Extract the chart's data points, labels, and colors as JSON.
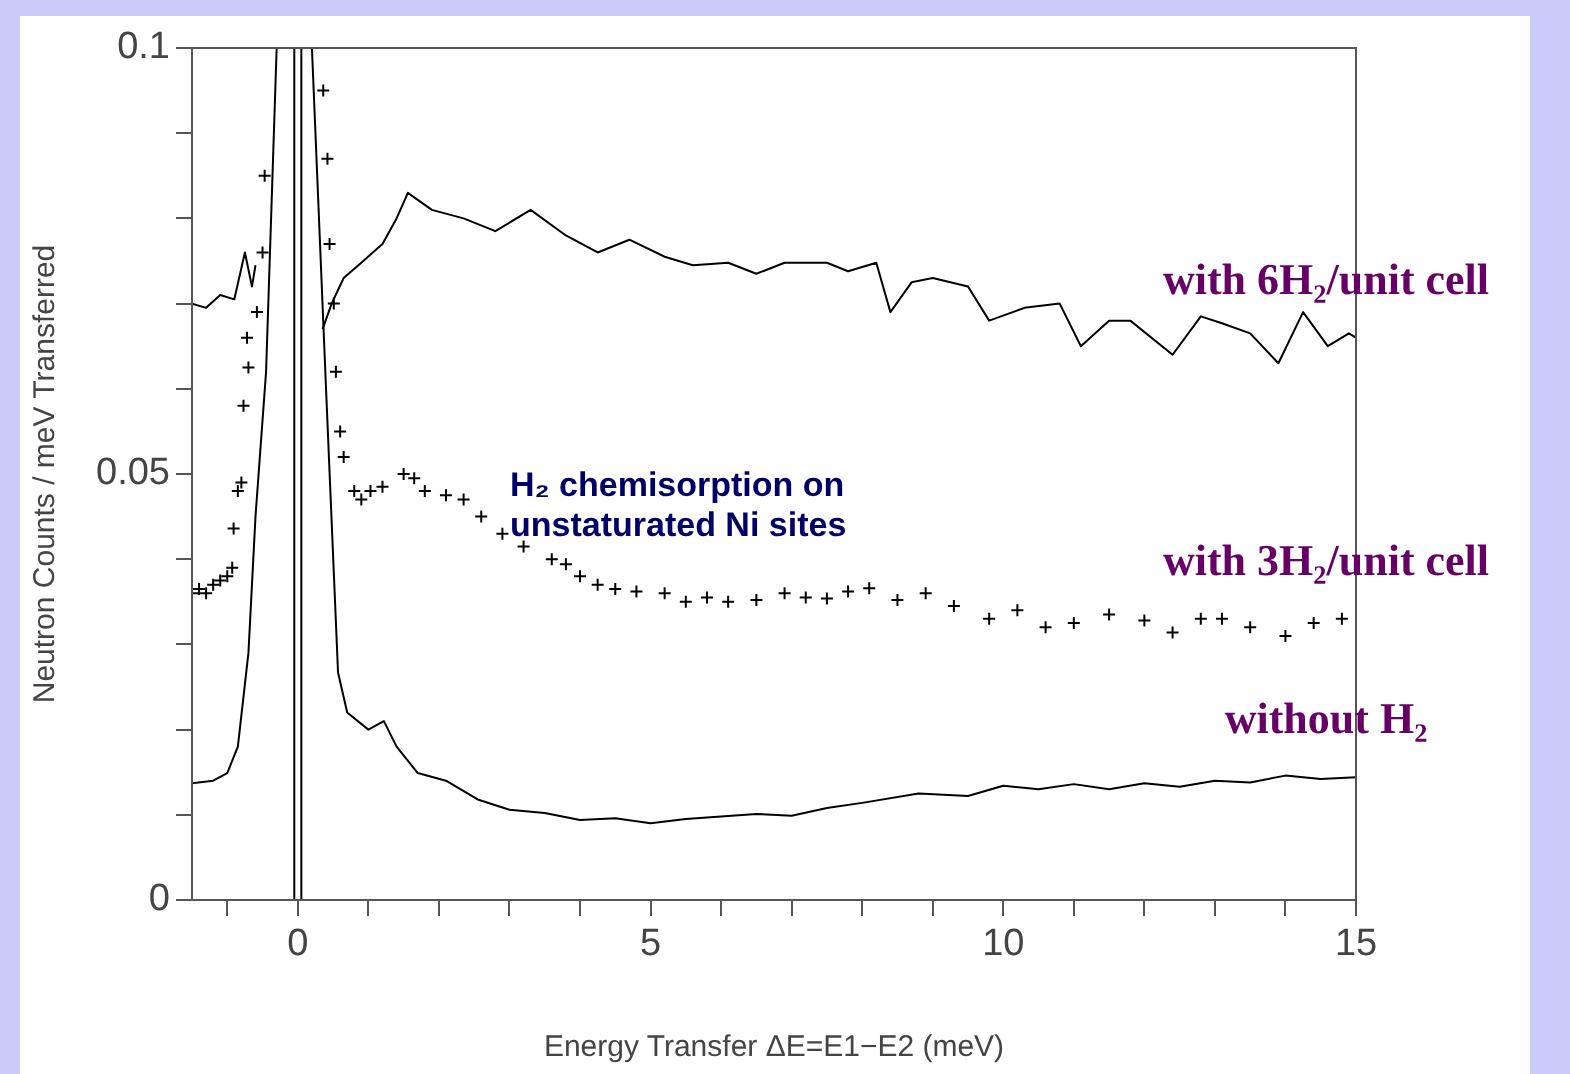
{
  "chart_data": {
    "type": "line",
    "xlabel": "Energy Transfer ΔE=E1−E2 (meV)",
    "ylabel": "Neutron Counts / meV Transferred",
    "xlim": [
      -1.5,
      15
    ],
    "ylim": [
      0,
      0.1
    ],
    "xticks": [
      {
        "value": -1,
        "label": null
      },
      0,
      {
        "value": 1,
        "label": null
      },
      {
        "value": 2,
        "label": null
      },
      {
        "value": 3,
        "label": null
      },
      {
        "value": 4,
        "label": null
      },
      5,
      {
        "value": 6,
        "label": null
      },
      {
        "value": 7,
        "label": null
      },
      {
        "value": 8,
        "label": null
      },
      {
        "value": 9,
        "label": null
      },
      10,
      {
        "value": 11,
        "label": null
      },
      {
        "value": 12,
        "label": null
      },
      {
        "value": 13,
        "label": null
      },
      {
        "value": 14,
        "label": null
      },
      15
    ],
    "yticks": [
      0,
      {
        "value": 0.01,
        "label": null
      },
      {
        "value": 0.02,
        "label": null
      },
      {
        "value": 0.03,
        "label": null
      },
      {
        "value": 0.04,
        "label": null
      },
      0.05,
      {
        "value": 0.06,
        "label": null
      },
      {
        "value": 0.07,
        "label": null
      },
      {
        "value": 0.08,
        "label": null
      },
      {
        "value": 0.09,
        "label": null
      },
      0.1
    ],
    "grid": false,
    "legend": false,
    "annotations": [
      "H₂ chemisorption on unstaturated Ni sites"
    ],
    "series": [
      {
        "name": "with 6H₂/unit cell",
        "type": "line",
        "marker": "none",
        "color": "#000000",
        "x": [
          -1.5,
          -1.3,
          -1.1,
          -0.9,
          -0.75,
          -0.65,
          -0.6,
          0,
          0.35,
          0.48,
          0.65,
          0.9,
          1.2,
          1.4,
          1.56,
          1.9,
          2.35,
          2.8,
          3.3,
          3.8,
          4.25,
          4.7,
          5.2,
          5.6,
          6.1,
          6.5,
          6.9,
          7.5,
          7.8,
          8.2,
          8.4,
          8.7,
          9.0,
          9.5,
          9.8,
          10.3,
          10.8,
          11.1,
          11.5,
          11.8,
          12.4,
          12.8,
          13.1,
          13.5,
          13.9,
          14.25,
          14.6,
          14.9,
          15.0
        ],
        "values": [
          0.07,
          0.0695,
          0.071,
          0.0705,
          0.076,
          0.072,
          0.0745,
          null,
          0.067,
          0.07,
          0.073,
          0.0748,
          0.077,
          0.08,
          0.083,
          0.081,
          0.08,
          0.0785,
          0.081,
          0.078,
          0.076,
          0.0775,
          0.0755,
          0.0745,
          0.0748,
          0.0735,
          0.0748,
          0.0748,
          0.0738,
          0.0748,
          0.069,
          0.0725,
          0.073,
          0.072,
          0.068,
          0.0695,
          0.07,
          0.065,
          0.068,
          0.068,
          0.064,
          0.0685,
          0.0677,
          0.0665,
          0.063,
          0.069,
          0.065,
          0.0665,
          0.066
        ]
      },
      {
        "name": "with 3H₂/unit cell",
        "type": "scatter",
        "marker": "cross",
        "color": "#000000",
        "x": [
          -1.5,
          -1.4,
          -1.3,
          -1.2,
          -1.1,
          -1.0,
          -0.93,
          -0.91,
          -0.85,
          -0.8,
          -0.77,
          -0.7,
          -0.72,
          -0.58,
          -0.5,
          -0.47,
          0.36,
          0.42,
          0.45,
          0.51,
          0.54,
          0.6,
          0.65,
          0.8,
          0.9,
          1.03,
          1.2,
          1.5,
          1.65,
          1.8,
          2.1,
          2.35,
          2.6,
          2.9,
          3.2,
          3.6,
          3.8,
          4.0,
          4.25,
          4.5,
          4.8,
          5.2,
          5.5,
          5.8,
          6.1,
          6.5,
          6.9,
          7.2,
          7.5,
          7.8,
          8.1,
          8.5,
          8.9,
          9.3,
          9.8,
          10.2,
          10.6,
          11.0,
          11.5,
          12.0,
          12.4,
          12.8,
          13.1,
          13.5,
          14.0,
          14.4,
          14.8
        ],
        "values": [
          0.036,
          0.0365,
          0.036,
          0.037,
          0.0375,
          0.038,
          0.039,
          0.0436,
          0.048,
          0.049,
          0.058,
          0.0625,
          0.066,
          0.069,
          0.076,
          0.085,
          0.095,
          0.087,
          0.077,
          0.07,
          0.062,
          0.055,
          0.052,
          0.048,
          0.047,
          0.048,
          0.0485,
          0.05,
          0.0495,
          0.048,
          0.0475,
          0.047,
          0.045,
          0.043,
          0.0415,
          0.04,
          0.0394,
          0.038,
          0.037,
          0.0365,
          0.0362,
          0.036,
          0.035,
          0.0355,
          0.035,
          0.0352,
          0.036,
          0.0355,
          0.0354,
          0.0362,
          0.0366,
          0.0352,
          0.036,
          0.0345,
          0.033,
          0.034,
          0.032,
          0.0325,
          0.0335,
          0.0328,
          0.0314,
          0.033,
          0.033,
          0.032,
          0.031,
          0.0325,
          0.033
        ]
      },
      {
        "name": "without H₂",
        "type": "line",
        "marker": "none",
        "color": "#000000",
        "x": [
          -1.5,
          -1.2,
          -1.0,
          -0.85,
          -0.7,
          -0.6,
          -0.45,
          -0.3,
          -0.2,
          -0.05,
          -0.05,
          0.05,
          0.05,
          0.15,
          0.2,
          0.4,
          0.57,
          0.7,
          1.0,
          1.22,
          1.4,
          1.7,
          2.1,
          2.55,
          3.0,
          3.5,
          4.0,
          4.5,
          5.0,
          5.5,
          6.0,
          6.5,
          7.0,
          7.5,
          8.0,
          8.8,
          9.5,
          10.0,
          10.5,
          11.0,
          11.5,
          12.0,
          12.5,
          13.0,
          13.5,
          14.0,
          14.5,
          15.0
        ],
        "values": [
          0.0137,
          0.014,
          0.0149,
          0.018,
          0.029,
          0.045,
          0.062,
          0.1,
          null,
          0.1,
          0,
          0,
          0.1,
          null,
          0.1,
          0.06,
          0.0267,
          0.022,
          0.02,
          0.021,
          0.018,
          0.0149,
          0.014,
          0.0118,
          0.0106,
          0.0102,
          0.0094,
          0.0096,
          0.009,
          0.0095,
          0.0098,
          0.0101,
          0.0099,
          0.0108,
          0.0114,
          0.0125,
          0.0122,
          0.0134,
          0.013,
          0.0136,
          0.013,
          0.0137,
          0.0133,
          0.014,
          0.0138,
          0.0146,
          0.0142,
          0.0144
        ]
      }
    ]
  }
}
